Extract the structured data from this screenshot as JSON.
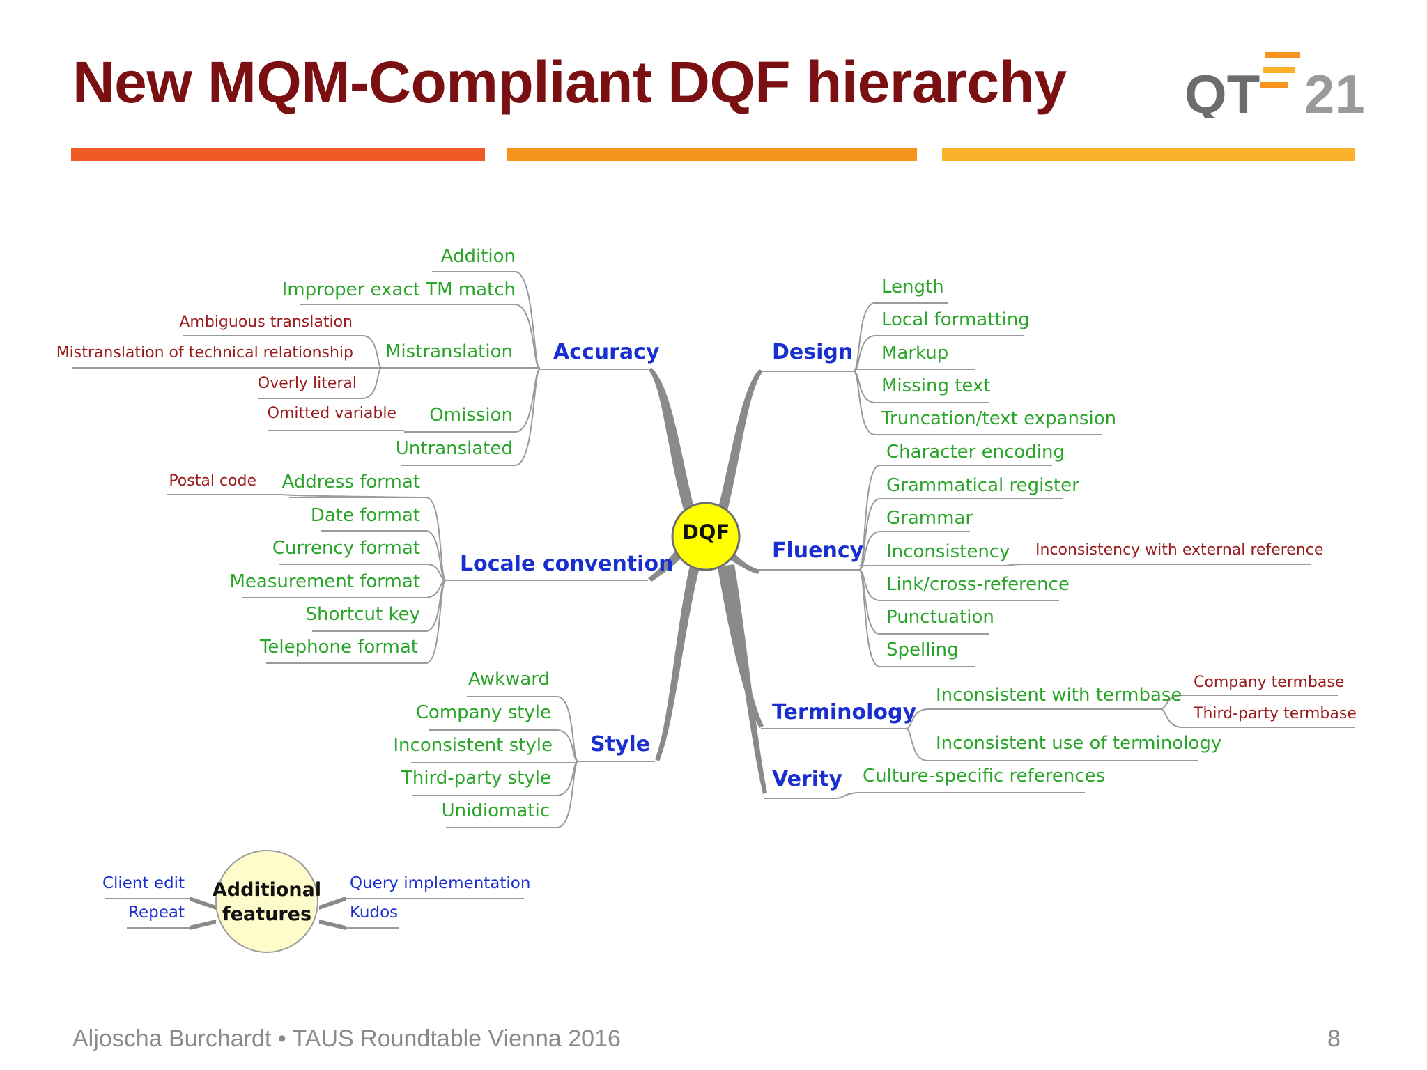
{
  "slide": {
    "title": "New MQM-Compliant DQF hierarchy",
    "logo_text_left": "QT",
    "logo_text_right": "21",
    "footer": "Aljoscha Burchardt • TAUS Roundtable Vienna 2016",
    "page_number": "8",
    "bar_colors": [
      "#f05a24",
      "#f7941d",
      "#fbb12a"
    ]
  },
  "diagram": {
    "center": "DQF",
    "accuracy": {
      "label": "Accuracy",
      "children": {
        "addition": "Addition",
        "improper_tm": "Improper exact TM match",
        "mistranslation": "Mistranslation",
        "mistranslation_children": [
          "Ambiguous translation",
          "Mistranslation of technical relationship",
          "Overly literal"
        ],
        "omission": "Omission",
        "omission_children": [
          "Omitted variable"
        ],
        "untranslated": "Untranslated"
      }
    },
    "locale": {
      "label": "Locale convention",
      "children": [
        "Address format",
        "Date format",
        "Currency format",
        "Measurement format",
        "Shortcut key",
        "Telephone format"
      ],
      "address_children": [
        "Postal code"
      ]
    },
    "style": {
      "label": "Style",
      "children": [
        "Awkward",
        "Company style",
        "Inconsistent style",
        "Third-party style",
        "Unidiomatic"
      ]
    },
    "design": {
      "label": "Design",
      "children": [
        "Length",
        "Local formatting",
        "Markup",
        "Missing text",
        "Truncation/text expansion"
      ]
    },
    "fluency": {
      "label": "Fluency",
      "children": [
        "Character encoding",
        "Grammatical register",
        "Grammar",
        "Inconsistency",
        "Link/cross-reference",
        "Punctuation",
        "Spelling"
      ],
      "inconsistency_children": [
        "Inconsistency with external reference"
      ]
    },
    "terminology": {
      "label": "Terminology",
      "children": [
        "Inconsistent with termbase",
        "Inconsistent use of terminology"
      ],
      "termbase_children": [
        "Company termbase",
        "Third-party termbase"
      ]
    },
    "verity": {
      "label": "Verity",
      "children": [
        "Culture-specific references"
      ]
    },
    "additional": {
      "line1": "Additional",
      "line2": "features",
      "left": [
        "Client edit",
        "Repeat"
      ],
      "right": [
        "Query implementation",
        "Kudos"
      ]
    }
  }
}
